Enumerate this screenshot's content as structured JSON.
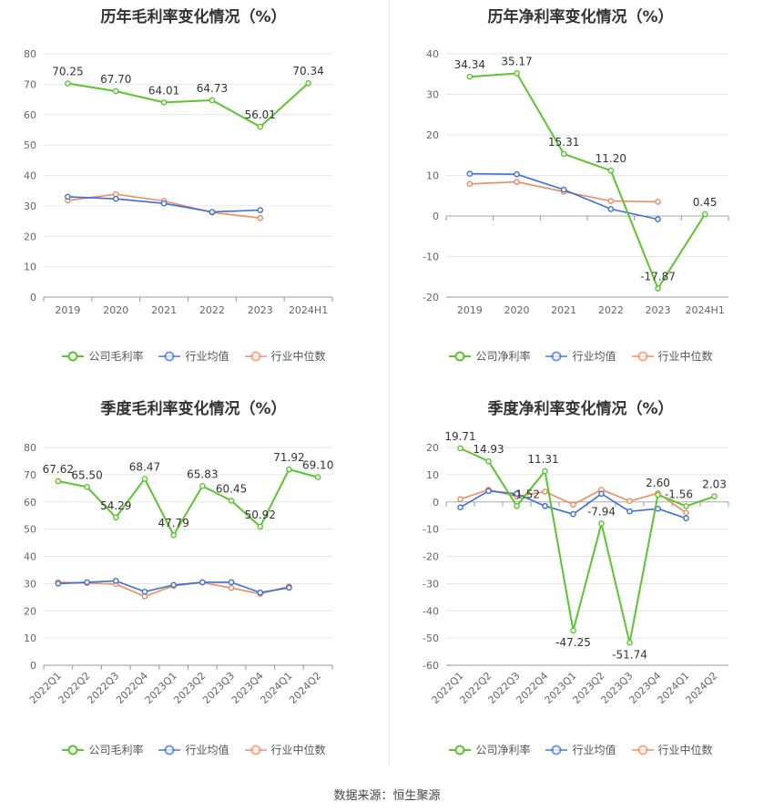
{
  "source_label": "数据来源：恒生聚源",
  "colors": {
    "company": "#5ac52e",
    "industry_avg": "#3b6fd6",
    "industry_median": "#f08a5d"
  },
  "chart_data": [
    {
      "type": "line",
      "title": "历年毛利率变化情况（%）",
      "categories": [
        "2019",
        "2020",
        "2021",
        "2022",
        "2023",
        "2024H1"
      ],
      "ylim": [
        0,
        80
      ],
      "yticks": [
        0,
        10,
        20,
        30,
        40,
        50,
        60,
        70,
        80
      ],
      "legend_position": "bottom",
      "series": [
        {
          "name": "公司毛利率",
          "values": [
            70.25,
            67.7,
            64.01,
            64.73,
            56.01,
            70.34
          ],
          "labels": [
            "70.25",
            "67.70",
            "64.01",
            "64.73",
            "56.01",
            "70.34"
          ]
        },
        {
          "name": "行业均值",
          "values": [
            33.0,
            32.3,
            30.8,
            28.0,
            28.6,
            null
          ]
        },
        {
          "name": "行业中位数",
          "values": [
            31.8,
            33.8,
            31.6,
            27.8,
            26.0,
            null
          ]
        }
      ]
    },
    {
      "type": "line",
      "title": "历年净利率变化情况（%）",
      "categories": [
        "2019",
        "2020",
        "2021",
        "2022",
        "2023",
        "2024H1"
      ],
      "ylim": [
        -20,
        40
      ],
      "yticks": [
        -20,
        -10,
        0,
        10,
        20,
        30,
        40
      ],
      "legend_position": "bottom",
      "series": [
        {
          "name": "公司净利率",
          "values": [
            34.34,
            35.17,
            15.31,
            11.2,
            -17.87,
            0.45
          ],
          "labels": [
            "34.34",
            "35.17",
            "15.31",
            "11.20",
            "-17.87",
            "0.45"
          ]
        },
        {
          "name": "行业均值",
          "values": [
            10.4,
            10.3,
            6.5,
            1.7,
            -0.8,
            null
          ]
        },
        {
          "name": "行业中位数",
          "values": [
            7.9,
            8.4,
            6.0,
            3.7,
            3.5,
            null
          ]
        }
      ]
    },
    {
      "type": "line",
      "title": "季度毛利率变化情况（%）",
      "categories": [
        "2022Q1",
        "2022Q2",
        "2022Q3",
        "2022Q4",
        "2023Q1",
        "2023Q2",
        "2023Q3",
        "2023Q4",
        "2024Q1",
        "2024Q2"
      ],
      "ylim": [
        0,
        80
      ],
      "yticks": [
        0,
        10,
        20,
        30,
        40,
        50,
        60,
        70,
        80
      ],
      "legend_position": "bottom",
      "series": [
        {
          "name": "公司毛利率",
          "values": [
            67.62,
            65.5,
            54.29,
            68.47,
            47.79,
            65.83,
            60.45,
            50.92,
            71.92,
            69.1
          ],
          "labels": [
            "67.62",
            "65.50",
            "54.29",
            "68.47",
            "47.79",
            "65.83",
            "60.45",
            "50.92",
            "71.92",
            "69.10"
          ]
        },
        {
          "name": "行业均值",
          "values": [
            30.0,
            30.5,
            31.0,
            27.0,
            29.5,
            30.5,
            30.5,
            26.7,
            28.5,
            null
          ]
        },
        {
          "name": "行业中位数",
          "values": [
            30.5,
            30.2,
            29.8,
            25.3,
            29.2,
            30.4,
            28.4,
            26.2,
            29.0,
            null
          ]
        }
      ]
    },
    {
      "type": "line",
      "title": "季度净利率变化情况（%）",
      "categories": [
        "2022Q1",
        "2022Q2",
        "2022Q3",
        "2022Q4",
        "2023Q1",
        "2023Q2",
        "2023Q3",
        "2023Q4",
        "2024Q1",
        "2024Q2"
      ],
      "ylim": [
        -60,
        20
      ],
      "yticks": [
        -60,
        -50,
        -40,
        -30,
        -20,
        -10,
        0,
        10,
        20
      ],
      "legend_position": "bottom",
      "series": [
        {
          "name": "公司净利率",
          "values": [
            19.71,
            14.93,
            -1.52,
            11.31,
            -47.25,
            -7.94,
            -51.74,
            2.6,
            -1.56,
            2.03
          ],
          "labels": [
            "19.71",
            "14.93",
            "-1.52",
            "11.31",
            "-47.25",
            "-7.94",
            "-51.74",
            "2.60",
            "-1.56",
            "2.03"
          ]
        },
        {
          "name": "行业均值",
          "values": [
            -2.0,
            4.0,
            3.0,
            -1.5,
            -4.5,
            3.0,
            -3.5,
            -2.5,
            -6.0,
            null
          ]
        },
        {
          "name": "行业中位数",
          "values": [
            1.0,
            4.5,
            2.0,
            3.8,
            -1.0,
            4.5,
            0.3,
            3.2,
            -4.0,
            null
          ]
        }
      ]
    }
  ]
}
